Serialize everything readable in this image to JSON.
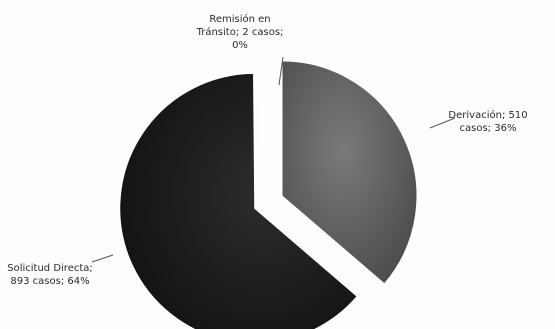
{
  "chart_data": {
    "type": "pie",
    "categories": [
      "Derivación",
      "Solicitud Directa",
      "Remisión en Tránsito"
    ],
    "values": [
      510,
      893,
      2
    ],
    "percentages": [
      36,
      64,
      0
    ],
    "title": "",
    "slice_colors": [
      "#5c5c5c",
      "#1a1a1a",
      "#b9b9b9"
    ],
    "labels": [
      {
        "lines": [
          "Derivación; 510",
          "casos; 36%"
        ]
      },
      {
        "lines": [
          "Solicitud Directa;",
          "893 casos; 64%"
        ]
      },
      {
        "lines": [
          "Remisión en",
          "Tránsito; 2 casos;",
          "0%"
        ]
      }
    ],
    "start_angle_deg": 0,
    "direction": "clockwise",
    "exploded": true
  }
}
